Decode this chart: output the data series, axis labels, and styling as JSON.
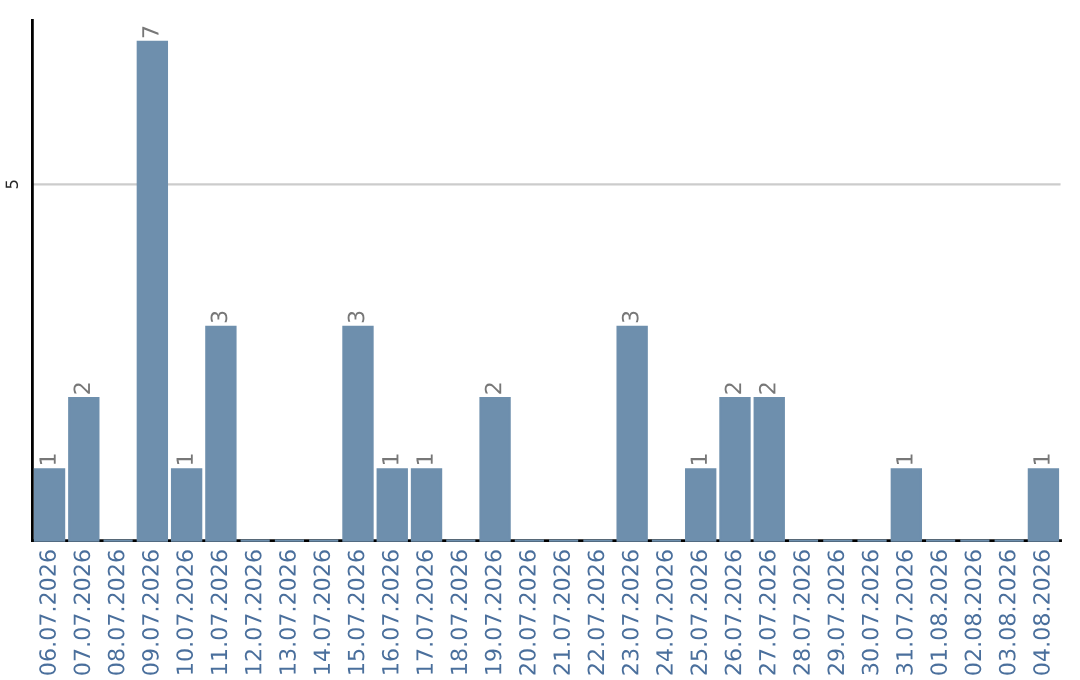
{
  "chart_data": {
    "type": "bar",
    "categories": [
      "06.07.2026",
      "07.07.2026",
      "08.07.2026",
      "09.07.2026",
      "10.07.2026",
      "11.07.2026",
      "12.07.2026",
      "13.07.2026",
      "14.07.2026",
      "15.07.2026",
      "16.07.2026",
      "17.07.2026",
      "18.07.2026",
      "19.07.2026",
      "20.07.2026",
      "21.07.2026",
      "22.07.2026",
      "23.07.2026",
      "24.07.2026",
      "25.07.2026",
      "26.07.2026",
      "27.07.2026",
      "28.07.2026",
      "29.07.2026",
      "30.07.2026",
      "31.07.2026",
      "01.08.2026",
      "02.08.2026",
      "03.08.2026",
      "04.08.2026"
    ],
    "values": [
      1,
      2,
      0,
      7,
      1,
      3,
      0,
      0,
      0,
      3,
      1,
      1,
      0,
      2,
      0,
      0,
      0,
      3,
      0,
      1,
      2,
      2,
      0,
      0,
      0,
      1,
      0,
      0,
      0,
      1
    ],
    "value_labels": [
      "1",
      "2",
      null,
      "7",
      "1",
      "3",
      null,
      null,
      null,
      "3",
      "1",
      "1",
      null,
      "2",
      null,
      null,
      null,
      "3",
      null,
      "1",
      "2",
      "2",
      null,
      null,
      null,
      "1",
      null,
      null,
      null,
      "1"
    ],
    "color": "#6e8fad",
    "ylim": [
      0,
      7.3
    ],
    "yticks": [
      5
    ],
    "grid": "y",
    "legend": false
  }
}
